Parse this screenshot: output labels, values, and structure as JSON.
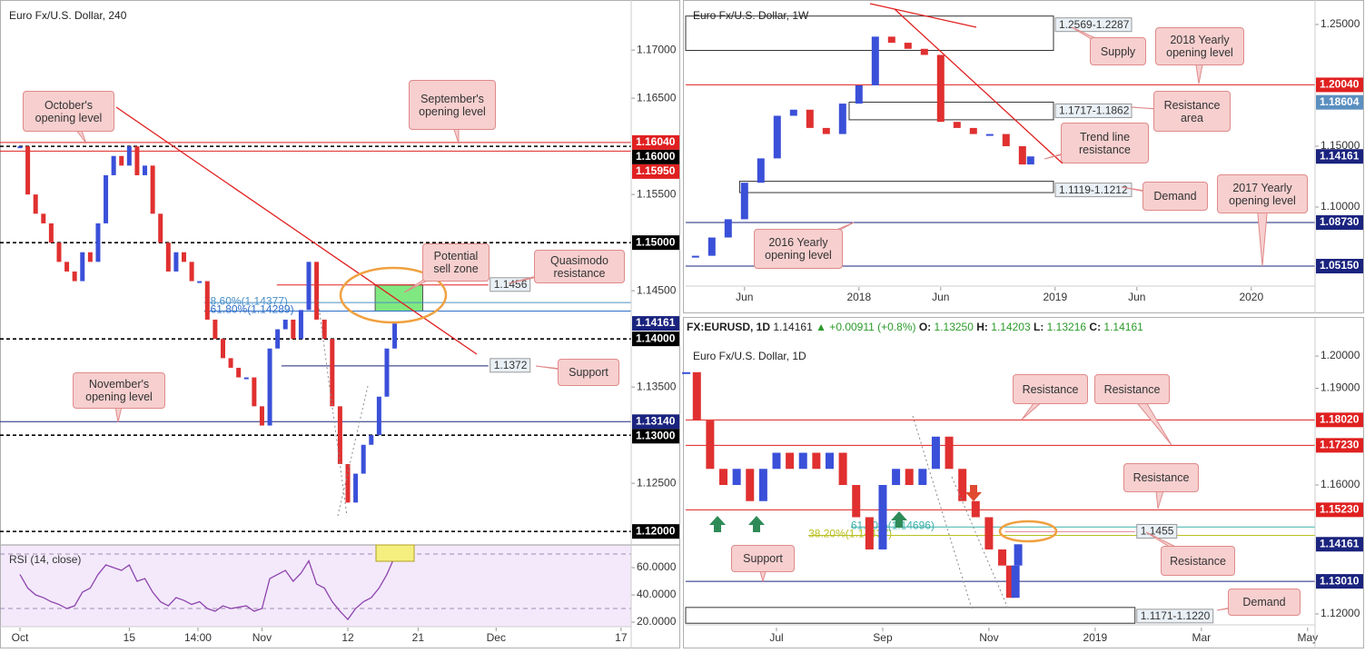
{
  "chart_data": [
    {
      "type": "candlestick",
      "title": "Euro Fx/U.S. Dollar, 240",
      "x": [
        1,
        2,
        3,
        4,
        5,
        6,
        7,
        8,
        9,
        10,
        11,
        12,
        13,
        14,
        15,
        16,
        17,
        18,
        19,
        20,
        21,
        22,
        23,
        24,
        25,
        26,
        27,
        28,
        29,
        30,
        31,
        32,
        33,
        34,
        35,
        36,
        37,
        38,
        39,
        40,
        41,
        42,
        43,
        44,
        45,
        46,
        47,
        48,
        49
      ],
      "values": [
        1.16,
        1.155,
        1.153,
        1.152,
        1.15,
        1.148,
        1.147,
        1.146,
        1.149,
        1.148,
        1.152,
        1.157,
        1.159,
        1.158,
        1.16,
        1.157,
        1.158,
        1.153,
        1.15,
        1.147,
        1.149,
        1.148,
        1.146,
        1.146,
        1.142,
        1.14,
        1.138,
        1.137,
        1.136,
        1.136,
        1.133,
        1.131,
        1.139,
        1.141,
        1.142,
        1.14,
        1.143,
        1.148,
        1.142,
        1.14,
        1.133,
        1.127,
        1.123,
        1.126,
        1.129,
        1.13,
        1.134,
        1.139,
        1.1416
      ],
      "up_color": "#3a50d9",
      "down_color": "#e03030",
      "xlim": [
        -1.56,
        79.3
      ],
      "ylim": [
        1.1186,
        1.1752
      ],
      "xticks": [
        {
          "value": 1,
          "label": "Oct"
        },
        {
          "value": 15,
          "label": "15"
        },
        {
          "value": 23.8,
          "label": "14:00"
        },
        {
          "value": 32,
          "label": "Nov"
        },
        {
          "value": 43,
          "label": "12"
        },
        {
          "value": 52,
          "label": "21"
        },
        {
          "value": 62,
          "label": "Dec"
        },
        {
          "value": 78,
          "label": "17"
        }
      ],
      "yticks": [
        {
          "value": 1.17,
          "label": "1.17000"
        },
        {
          "value": 1.165,
          "label": "1.16500"
        },
        {
          "value": 1.155,
          "label": "1.15500"
        },
        {
          "value": 1.145,
          "label": "1.14500"
        },
        {
          "value": 1.135,
          "label": "1.13500"
        },
        {
          "value": 1.125,
          "label": "1.12500"
        }
      ],
      "levels": [
        {
          "value": 1.1604,
          "label": "1.16040",
          "color": "#e02020"
        },
        {
          "value": 1.16,
          "label": "1.16000",
          "color": "#000000",
          "dash": true
        },
        {
          "value": 1.1595,
          "label": "1.15950",
          "color": "#e02020"
        },
        {
          "value": 1.15,
          "label": "1.15000",
          "color": "#000000",
          "dash": true
        },
        {
          "value": 1.14161,
          "label": "1.14161",
          "color": "#1a237e",
          "line": false
        },
        {
          "value": 1.14,
          "label": "1.14000",
          "color": "#000000",
          "dash": true
        },
        {
          "value": 1.1314,
          "label": "1.13140",
          "color": "#1a237e"
        },
        {
          "value": 1.13,
          "label": "1.13000",
          "color": "#000000",
          "dash": true
        },
        {
          "value": 1.12,
          "label": "1.12000",
          "color": "#000000",
          "dash": true
        },
        {
          "value": 1.1456,
          "tag": "1.1456",
          "color": "#e02020",
          "start": 33.9,
          "end": 61
        },
        {
          "value": 1.1372,
          "tag": "1.1372",
          "color": "#1a237e",
          "start": 34.5,
          "end": 61
        }
      ],
      "fibs": [
        {
          "value": 1.14377,
          "label": "78.60%(1.14377)",
          "color": "#4a90c8",
          "start": 24.6
        },
        {
          "value": 1.14289,
          "label": "161.80%(1.14289)",
          "color": "#2e6fc8",
          "start": 24.6
        }
      ],
      "zones": [
        {
          "high": 1.1456,
          "low": 1.14289,
          "start": 46.5,
          "end": 52.6,
          "color": "#80e880"
        }
      ],
      "annotations": [
        "October's opening level",
        "September's opening level",
        "Potential sell zone",
        "Quasimodo resistance",
        "Support",
        "November's opening level"
      ],
      "rsi": {
        "title": "RSI (14, close)",
        "color": "#8e44ad",
        "values": [
          55,
          45,
          40,
          38,
          35,
          33,
          30,
          32,
          42,
          45,
          55,
          62,
          60,
          58,
          62,
          50,
          52,
          42,
          35,
          32,
          38,
          36,
          33,
          35,
          30,
          28,
          32,
          30,
          31,
          32,
          28,
          30,
          52,
          55,
          58,
          50,
          56,
          65,
          48,
          45,
          35,
          28,
          22,
          30,
          35,
          38,
          45,
          55,
          68
        ],
        "ylim": [
          16.7,
          76.7
        ],
        "bands": [
          30,
          70
        ],
        "yticks": [
          {
            "value": 60,
            "label": "60.0000"
          },
          {
            "value": 40,
            "label": "40.0000"
          },
          {
            "value": 20,
            "label": "20.0000"
          }
        ]
      }
    },
    {
      "type": "candlestick",
      "title": "Euro Fx/U.S. Dollar, 1W",
      "x": [
        2,
        3,
        4,
        5,
        6,
        7,
        8,
        9,
        10,
        11,
        12,
        13,
        14,
        15,
        16,
        17,
        18,
        19,
        20,
        21,
        22,
        22.5
      ],
      "values": [
        1.06,
        1.075,
        1.09,
        1.12,
        1.14,
        1.175,
        1.18,
        1.165,
        1.16,
        1.185,
        1.2,
        1.24,
        1.235,
        1.23,
        1.225,
        1.17,
        1.165,
        1.16,
        1.16,
        1.15,
        1.135,
        1.1416
      ],
      "up_color": "#3a50d9",
      "down_color": "#e03030",
      "xlim": [
        1.4,
        39.9
      ],
      "ylim": [
        1.0351,
        1.2701
      ],
      "xticks": [
        {
          "value": 5,
          "label": "Jun"
        },
        {
          "value": 12,
          "label": "2018"
        },
        {
          "value": 17,
          "label": "Jun"
        },
        {
          "value": 24,
          "label": "2019"
        },
        {
          "value": 29,
          "label": "Jun"
        },
        {
          "value": 36,
          "label": "2020"
        }
      ],
      "yticks": [
        {
          "value": 1.25,
          "label": "1.25000"
        },
        {
          "value": 1.15,
          "label": "1.15000"
        },
        {
          "value": 1.1,
          "label": "1.10000"
        }
      ],
      "levels": [
        {
          "value": 1.2004,
          "label": "1.20040",
          "color": "#e02020"
        },
        {
          "value": 1.18604,
          "label": "1.18604",
          "color": "#5b8fc0",
          "line": false
        },
        {
          "value": 1.14161,
          "label": "1.14161",
          "color": "#1a237e",
          "line": false
        },
        {
          "value": 1.0873,
          "label": "1.08730",
          "color": "#1a237e"
        },
        {
          "value": 1.0515,
          "label": "1.05150",
          "color": "#1a237e"
        }
      ],
      "zones": [
        {
          "high": 1.2569,
          "low": 1.2287,
          "label": "1.2569-1.2287",
          "start": 1.4,
          "end": 23.9
        },
        {
          "high": 1.1862,
          "low": 1.1717,
          "label": "1.1717-1.1862",
          "start": 11.4,
          "end": 23.9
        },
        {
          "high": 1.1212,
          "low": 1.1119,
          "label": "1.1119-1.1212",
          "start": 4.7,
          "end": 23.9
        }
      ],
      "annotations": [
        "Supply",
        "2018 Yearly opening level",
        "Resistance area",
        "Trend line resistance",
        "Demand",
        "2017 Yearly opening level",
        "2016 Yearly opening level"
      ]
    },
    {
      "type": "candlestick",
      "title": "Euro Fx/U.S. Dollar, 1D",
      "header": {
        "symbol": "FX:EURUSD, 1D",
        "last": "1.14161",
        "change": "▲ +0.00911 (+0.8%)",
        "ohlc": [
          {
            "key": "O:",
            "value": "1.13250"
          },
          {
            "key": "H:",
            "value": "1.14203"
          },
          {
            "key": "L:",
            "value": "1.13216"
          },
          {
            "key": "C:",
            "value": "1.14161"
          }
        ]
      },
      "x": [
        4.3,
        4.5,
        4.75,
        5,
        5.25,
        5.5,
        5.75,
        6,
        6.25,
        6.5,
        6.75,
        7,
        7.25,
        7.5,
        7.75,
        8,
        8.25,
        8.5,
        8.75,
        9,
        9.25,
        9.5,
        9.75,
        10,
        10.25,
        10.4,
        10.5,
        10.55
      ],
      "values": [
        1.195,
        1.18,
        1.165,
        1.16,
        1.165,
        1.155,
        1.165,
        1.17,
        1.165,
        1.17,
        1.165,
        1.17,
        1.16,
        1.15,
        1.14,
        1.16,
        1.165,
        1.16,
        1.165,
        1.175,
        1.165,
        1.155,
        1.15,
        1.14,
        1.135,
        1.125,
        1.135,
        1.1416
      ],
      "up_color": "#3a50d9",
      "down_color": "#e03030",
      "xlim": [
        4.29,
        16.14
      ],
      "ylim": [
        1.1166,
        1.2034
      ],
      "xticks": [
        {
          "value": 6,
          "label": "Jul"
        },
        {
          "value": 8,
          "label": "Sep"
        },
        {
          "value": 10,
          "label": "Nov"
        },
        {
          "value": 12,
          "label": "2019"
        },
        {
          "value": 14,
          "label": "Mar"
        },
        {
          "value": 16,
          "label": "May"
        }
      ],
      "yticks": [
        {
          "value": 1.2,
          "label": "1.20000"
        },
        {
          "value": 1.19,
          "label": "1.19000"
        },
        {
          "value": 1.16,
          "label": "1.16000"
        },
        {
          "value": 1.12,
          "label": "1.12000"
        }
      ],
      "levels": [
        {
          "value": 1.1802,
          "label": "1.18020",
          "color": "#e02020"
        },
        {
          "value": 1.1723,
          "label": "1.17230",
          "color": "#e02020"
        },
        {
          "value": 1.1523,
          "label": "1.15230",
          "color": "#e02020"
        },
        {
          "value": 1.14161,
          "label": "1.14161",
          "color": "#1a237e",
          "line": false
        },
        {
          "value": 1.1301,
          "label": "1.13010",
          "color": "#1a237e"
        },
        {
          "value": 1.1455,
          "tag": "1.1455",
          "color": "#e88a9a",
          "start": 10.3,
          "end": 12.75
        }
      ],
      "fibs": [
        {
          "value": 1.14696,
          "label": "61.80%(1.14696)",
          "color": "#3ab0a8",
          "start": 7.4
        },
        {
          "value": 1.14437,
          "label": "38.20%(1.14437)",
          "color": "#b8c020",
          "start": 6.6
        }
      ],
      "zones": [
        {
          "high": 1.122,
          "low": 1.1171,
          "label": "1.1171-1.1220",
          "start": 4.29,
          "end": 12.75
        }
      ],
      "annotations": [
        "Resistance",
        "Resistance",
        "Resistance",
        "Resistance",
        "Support",
        "Demand"
      ]
    }
  ]
}
